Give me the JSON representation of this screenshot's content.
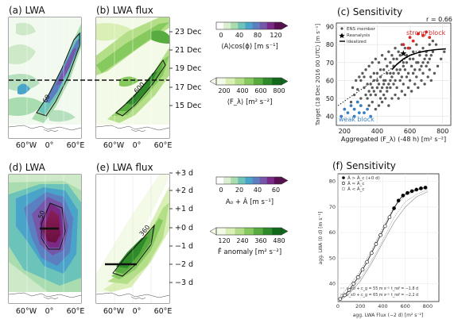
{
  "panels": {
    "a": {
      "title": "(a) LWA"
    },
    "b": {
      "title": "(b) LWA flux"
    },
    "c": {
      "title": "(c) Sensitivity"
    },
    "d": {
      "title": "(d) LWA"
    },
    "e": {
      "title": "(e) LWA flux"
    },
    "f": {
      "title": "(f) Sensitivity"
    }
  },
  "top_row": {
    "x_ticks": [
      "60°W",
      "0°",
      "60°E"
    ],
    "date_ticks": [
      "23 Dec",
      "21 Dec",
      "19 Dec",
      "17 Dec",
      "15 Dec"
    ],
    "contour_label_a": "60",
    "contour_label_b": "600"
  },
  "bottom_row": {
    "x_ticks": [
      "60°W",
      "0°",
      "60°E"
    ],
    "day_ticks": [
      "+3 d",
      "+2 d",
      "+1 d",
      "+0 d",
      "−1 d",
      "−2 d",
      "−3 d"
    ],
    "contour_label_d": "50",
    "contour_label_e": "360"
  },
  "colorbars": [
    {
      "ticks": [
        "0",
        "40",
        "80",
        "120"
      ],
      "label": "⟨A⟩cos(ϕ) [m s⁻¹]",
      "colors": [
        "#ffffff",
        "#d9efcf",
        "#a9dcae",
        "#6cc3b9",
        "#4aa3c8",
        "#5c7fc1",
        "#7656a8",
        "#7a2a86",
        "#5a0f52"
      ]
    },
    {
      "ticks": [
        "200",
        "400",
        "600",
        "800"
      ],
      "label": "⟨F_λ⟩ [m² s⁻²]",
      "colors": [
        "#f4fae8",
        "#d9efb5",
        "#b4df88",
        "#86c95e",
        "#58ab3e",
        "#2f8a2a",
        "#0f6a1c"
      ]
    },
    {
      "ticks": [
        "0",
        "20",
        "40",
        "60"
      ],
      "label": "A₀ + Â [m s⁻¹]",
      "colors": [
        "#ffffff",
        "#d9efcf",
        "#a9dcae",
        "#6cc3b9",
        "#4aa3c8",
        "#5c7fc1",
        "#7656a8",
        "#7a2a86",
        "#5a0f52"
      ]
    },
    {
      "ticks": [
        "120",
        "240",
        "360",
        "480"
      ],
      "label": "F̂ anomaly [m² s⁻²]",
      "colors": [
        "#f4fae8",
        "#d9efb5",
        "#b4df88",
        "#86c95e",
        "#58ab3e",
        "#2f8a2a",
        "#0f6a1c"
      ]
    }
  ],
  "chart_data": [
    {
      "panel": "c",
      "type": "scatter",
      "title": "(c) Sensitivity",
      "xlabel": "Aggregated ⟨F_λ⟩ (-48 h) [m² s⁻²]",
      "ylabel": "Target (18 Dec 2016 00 UTC) [m s⁻¹]",
      "xlim": [
        150,
        850
      ],
      "ylim": [
        35,
        92
      ],
      "xticks": [
        "200",
        "400",
        "600",
        "800"
      ],
      "yticks": [
        "40",
        "50",
        "60",
        "70",
        "80",
        "90"
      ],
      "annotation": "r = 0.66",
      "strong_label": "strong block",
      "weak_label": "weak block",
      "legend": [
        "ENS member",
        "Reanalysis",
        "Idealized"
      ],
      "reanalysis": [
        560,
        75
      ],
      "idealized": {
        "x": [
          490,
          520,
          560,
          600,
          650,
          700,
          760,
          820
        ],
        "y": [
          66,
          69,
          72,
          74,
          75.5,
          76.5,
          77.2,
          77.6
        ]
      },
      "trend": {
        "x": [
          160,
          650
        ],
        "y": [
          46,
          77
        ]
      },
      "ens_gray": [
        [
          300,
          60
        ],
        [
          320,
          56
        ],
        [
          340,
          58
        ],
        [
          360,
          62
        ],
        [
          380,
          60
        ],
        [
          400,
          64
        ],
        [
          420,
          62
        ],
        [
          440,
          66
        ],
        [
          460,
          64
        ],
        [
          480,
          70
        ],
        [
          500,
          68
        ],
        [
          520,
          72
        ],
        [
          540,
          66
        ],
        [
          560,
          70
        ],
        [
          580,
          74
        ],
        [
          600,
          72
        ],
        [
          620,
          76
        ],
        [
          640,
          70
        ],
        [
          660,
          74
        ],
        [
          680,
          78
        ],
        [
          700,
          76
        ],
        [
          720,
          80
        ],
        [
          740,
          82
        ],
        [
          760,
          80
        ],
        [
          300,
          50
        ],
        [
          330,
          52
        ],
        [
          350,
          54
        ],
        [
          370,
          56
        ],
        [
          390,
          52
        ],
        [
          410,
          58
        ],
        [
          430,
          56
        ],
        [
          450,
          60
        ],
        [
          470,
          58
        ],
        [
          490,
          62
        ],
        [
          510,
          60
        ],
        [
          530,
          64
        ],
        [
          550,
          62
        ],
        [
          570,
          66
        ],
        [
          590,
          64
        ],
        [
          610,
          68
        ],
        [
          630,
          66
        ],
        [
          650,
          70
        ],
        [
          670,
          68
        ],
        [
          690,
          72
        ],
        [
          710,
          70
        ],
        [
          730,
          74
        ],
        [
          280,
          55
        ],
        [
          260,
          52
        ],
        [
          240,
          48
        ],
        [
          250,
          56
        ],
        [
          270,
          60
        ],
        [
          290,
          62
        ],
        [
          310,
          64
        ],
        [
          330,
          66
        ],
        [
          350,
          68
        ],
        [
          370,
          70
        ],
        [
          390,
          72
        ],
        [
          410,
          70
        ],
        [
          430,
          74
        ],
        [
          450,
          72
        ],
        [
          470,
          76
        ],
        [
          490,
          74
        ],
        [
          510,
          78
        ],
        [
          530,
          76
        ],
        [
          550,
          80
        ],
        [
          570,
          78
        ],
        [
          420,
          50
        ],
        [
          440,
          52
        ],
        [
          460,
          54
        ],
        [
          480,
          56
        ],
        [
          500,
          58
        ],
        [
          520,
          56
        ],
        [
          540,
          60
        ],
        [
          560,
          58
        ],
        [
          580,
          62
        ],
        [
          600,
          60
        ],
        [
          620,
          64
        ],
        [
          640,
          62
        ],
        [
          660,
          66
        ],
        [
          680,
          64
        ],
        [
          700,
          68
        ],
        [
          720,
          66
        ],
        [
          350,
          46
        ],
        [
          370,
          48
        ],
        [
          390,
          44
        ],
        [
          410,
          46
        ],
        [
          430,
          48
        ],
        [
          450,
          50
        ],
        [
          470,
          46
        ],
        [
          490,
          50
        ],
        [
          510,
          52
        ],
        [
          530,
          50
        ],
        [
          550,
          54
        ],
        [
          570,
          52
        ],
        [
          590,
          56
        ],
        [
          610,
          54
        ],
        [
          630,
          58
        ],
        [
          650,
          56
        ],
        [
          670,
          60
        ],
        [
          690,
          58
        ],
        [
          710,
          62
        ],
        [
          730,
          60
        ],
        [
          750,
          64
        ],
        [
          770,
          68
        ],
        [
          790,
          72
        ],
        [
          810,
          76
        ],
        [
          360,
          58
        ],
        [
          380,
          64
        ],
        [
          400,
          60
        ],
        [
          420,
          66
        ],
        [
          440,
          60
        ],
        [
          460,
          68
        ],
        [
          480,
          64
        ],
        [
          500,
          72
        ],
        [
          520,
          66
        ],
        [
          540,
          74
        ],
        [
          560,
          68
        ],
        [
          580,
          70
        ],
        [
          600,
          78
        ],
        [
          620,
          72
        ],
        [
          640,
          80
        ],
        [
          660,
          76
        ],
        [
          680,
          70
        ],
        [
          700,
          74
        ],
        [
          720,
          72
        ],
        [
          740,
          76
        ],
        [
          320,
          62
        ],
        [
          340,
          50
        ],
        [
          360,
          52
        ],
        [
          380,
          54
        ],
        [
          400,
          56
        ],
        [
          420,
          54
        ],
        [
          440,
          58
        ],
        [
          460,
          56
        ],
        [
          480,
          60
        ],
        [
          500,
          64
        ]
      ],
      "ens_blue": [
        [
          180,
          40
        ],
        [
          200,
          44
        ],
        [
          220,
          42
        ],
        [
          240,
          46
        ],
        [
          260,
          44
        ],
        [
          280,
          48
        ],
        [
          300,
          46
        ],
        [
          320,
          42
        ],
        [
          340,
          44
        ],
        [
          360,
          40
        ],
        [
          260,
          40
        ],
        [
          290,
          42
        ]
      ],
      "ens_red": [
        [
          560,
          80
        ],
        [
          600,
          84
        ],
        [
          620,
          82
        ],
        [
          650,
          86
        ],
        [
          680,
          85
        ],
        [
          700,
          87
        ],
        [
          720,
          84
        ],
        [
          590,
          78
        ]
      ]
    },
    {
      "panel": "f",
      "type": "line",
      "title": "(f) Sensitivity",
      "xlabel": "agg. LWA Flux (−2 d) [m² s⁻²]",
      "ylabel": "agg. LWA (0 d) [m s⁻¹]",
      "xlim": [
        0,
        900
      ],
      "ylim": [
        33,
        83
      ],
      "xticks": [
        "0",
        "200",
        "400",
        "600",
        "800"
      ],
      "yticks": [
        "40",
        "50",
        "60",
        "70",
        "80"
      ],
      "legend_top": [
        "Â > Â_c (+0 d)",
        "Â ≈ Â_c",
        "Â < Â_c"
      ],
      "legend_bottom": [
        "c_x0 + c_g = 55 m s⁻¹",
        "c_x0 + c_g = 65 m s⁻¹",
        "t_ref = −1.8 d",
        "t_ref = −2.2 d"
      ],
      "main_curve": {
        "x": [
          20,
          60,
          100,
          140,
          180,
          220,
          260,
          300,
          340,
          380,
          420,
          460,
          500,
          540,
          580,
          620,
          660,
          700,
          740,
          780
        ],
        "y": [
          34,
          35.5,
          37.5,
          40,
          42.5,
          45.5,
          48.5,
          52,
          55.5,
          59,
          62.5,
          66,
          69.5,
          72.5,
          74.5,
          75.5,
          76.2,
          76.8,
          77.3,
          77.6
        ]
      },
      "filled_points_from_index": 12,
      "thin_curves": [
        {
          "x": [
            20,
            100,
            200,
            300,
            400,
            500,
            600,
            700,
            800
          ],
          "y": [
            35,
            39,
            45,
            53,
            62,
            70,
            74.5,
            76.5,
            77.5
          ]
        },
        {
          "x": [
            20,
            100,
            200,
            300,
            400,
            500,
            600,
            700,
            800
          ],
          "y": [
            33.5,
            36,
            41,
            48,
            56,
            64,
            70,
            74,
            76
          ]
        },
        {
          "x": [
            20,
            100,
            200,
            300,
            400,
            500,
            600,
            700,
            800
          ],
          "y": [
            34.5,
            37,
            42,
            49,
            57,
            66,
            72,
            75,
            76.8
          ]
        }
      ]
    }
  ]
}
